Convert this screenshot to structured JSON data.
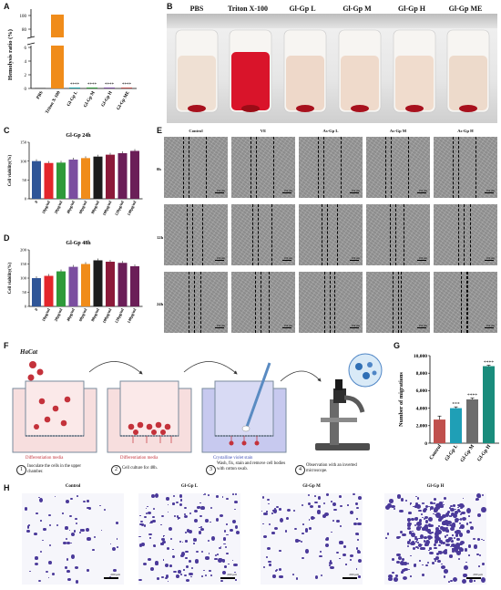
{
  "panels": {
    "A": "A",
    "B": "B",
    "C": "C",
    "D": "D",
    "E": "E",
    "F": "F",
    "G": "G",
    "H": "H"
  },
  "panel_a": {
    "ylabel": "Hemolysis ratio (%)",
    "yticks_top": [
      "80",
      "100"
    ],
    "yticks_bottom": [
      "0",
      "2",
      "4",
      "6"
    ],
    "categories": [
      "PBS",
      "Triton X-100",
      "Gl-Gp L",
      "Gl-Gp M",
      "Gl-Gp H",
      "Gl-Gp ME"
    ],
    "significance": [
      "****",
      "****",
      "****",
      "****"
    ]
  },
  "panel_b": {
    "labels": [
      "PBS",
      "Triton X-100",
      "Gl-Gp L",
      "Gl-Gp M",
      "Gl-Gp H",
      "Gl-Gp ME"
    ]
  },
  "panel_e": {
    "columns": [
      "Control",
      "VE",
      "As-Gp L",
      "As-Gp M",
      "As-Gp H"
    ],
    "rows": [
      "0h",
      "12h",
      "24h"
    ],
    "scale": "100 μm"
  },
  "panel_f": {
    "cell_name": "HaCat",
    "well_labels": [
      "Differentiation media",
      "Differentiation media",
      "Crystalline violet stain"
    ],
    "steps": [
      {
        "num": "1",
        "text": "Inoculate the cells in the upper chamber."
      },
      {
        "num": "2",
        "text": "Cell culture for 48h."
      },
      {
        "num": "3",
        "text": "Wash, fix, stain and remove cell bodies with cotton swab."
      },
      {
        "num": "4",
        "text": "Observation with an inverted microscope."
      }
    ]
  },
  "panel_h": {
    "labels": [
      "Control",
      "Gl-Gp L",
      "Gl-Gp M",
      "Gl-Gp H"
    ],
    "scale": "200 μm"
  },
  "colors": {
    "blue": "#1f4e9c",
    "red": "#e3262c",
    "green": "#2f9a3a",
    "purple": "#7b4ea0",
    "orange": "#f08c1a",
    "gray": "#8c8c8c",
    "teal": "#1ea3a8",
    "dark": "#1c1c1c",
    "wine": "#8b1a3a",
    "plum": "#6b1f58",
    "navy": "#2f5597",
    "g_red": "#c0504d",
    "g_cyan": "#1f9fb6",
    "g_gray": "#6d6d6d",
    "g_teal": "#1a8c7c"
  },
  "chart_data": [
    {
      "type": "bar",
      "panel": "A",
      "categories": [
        "PBS",
        "Triton X-100",
        "Gl-Gp L",
        "Gl-Gp M",
        "Gl-Gp H",
        "Gl-Gp ME"
      ],
      "values": [
        0.1,
        100,
        0.1,
        0.1,
        0.1,
        0.1
      ],
      "ylabel": "Hemolysis ratio (%)",
      "broken_axis": [
        [
          0,
          6
        ],
        [
          80,
          100
        ]
      ]
    },
    {
      "type": "bar",
      "panel": "C",
      "title": "Gl-Gp 24h",
      "categories": [
        "0",
        "10μg/ml",
        "20μg/ml",
        "40μg/ml",
        "60μg/ml",
        "80μg/ml",
        "100μg/ml",
        "120μg/ml",
        "140μg/ml"
      ],
      "values": [
        100,
        95,
        96,
        104,
        108,
        112,
        117,
        121,
        127
      ],
      "ylabel": "Cell viability(%)",
      "ylim": [
        0,
        150
      ],
      "yticks": [
        0,
        50,
        100,
        150
      ]
    },
    {
      "type": "bar",
      "panel": "D",
      "title": "Gl-Gp 48h",
      "categories": [
        "0",
        "10μg/ml",
        "20μg/ml",
        "40μg/ml",
        "60μg/ml",
        "80μg/ml",
        "100μg/ml",
        "120μg/ml",
        "140μg/ml"
      ],
      "values": [
        100,
        108,
        124,
        140,
        150,
        163,
        158,
        154,
        142
      ],
      "ylabel": "Cell viability(%)",
      "ylim": [
        0,
        200
      ],
      "yticks": [
        0,
        50,
        100,
        150,
        200
      ]
    },
    {
      "type": "bar",
      "panel": "G",
      "categories": [
        "Control",
        "Gl-Gp L",
        "Gl-Gp M",
        "Gl-Gp H"
      ],
      "values": [
        2700,
        4000,
        5000,
        8800
      ],
      "errors": [
        400,
        150,
        150,
        100
      ],
      "significance": [
        "",
        "***",
        "****",
        "****"
      ],
      "ylabel": "Number of migrations",
      "ylim": [
        0,
        10000
      ],
      "yticks": [
        "0",
        "2,000",
        "4,000",
        "6,000",
        "8,000",
        "10,000"
      ]
    }
  ]
}
